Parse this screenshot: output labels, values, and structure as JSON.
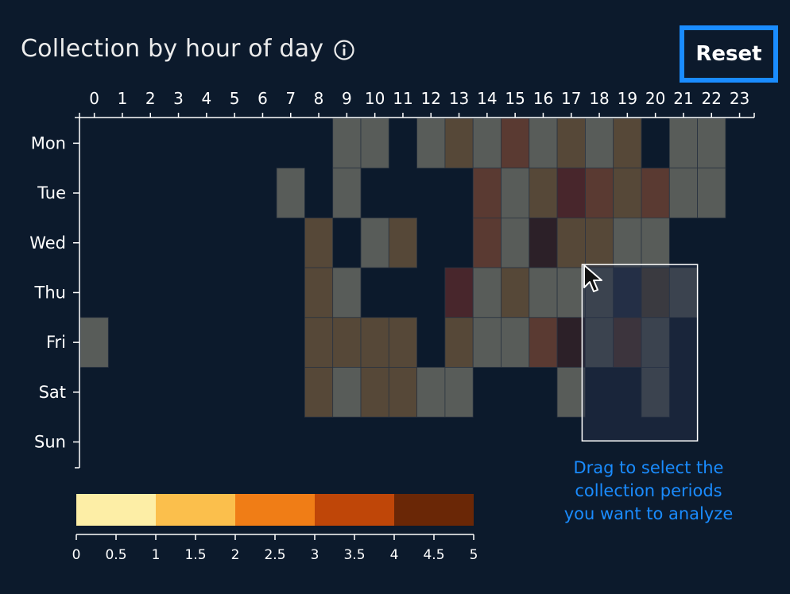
{
  "header": {
    "title": "Collection by hour of day",
    "reset_label": "Reset"
  },
  "hint": {
    "line1": "Drag to select the",
    "line2": "collection periods",
    "line3": "you want to analyze"
  },
  "colors": {
    "background": "#0c1a2c",
    "accent": "#1a8cff",
    "axis": "#ffffff"
  },
  "chart_data": {
    "type": "heatmap",
    "title": "Collection by hour of day",
    "x": [
      "0",
      "1",
      "2",
      "3",
      "4",
      "5",
      "6",
      "7",
      "8",
      "9",
      "10",
      "11",
      "12",
      "13",
      "14",
      "15",
      "16",
      "17",
      "18",
      "19",
      "20",
      "21",
      "22",
      "23"
    ],
    "y": [
      "Mon",
      "Tue",
      "Wed",
      "Thu",
      "Fri",
      "Sat",
      "Sun"
    ],
    "cells": [
      {
        "day": "Mon",
        "hour": 9,
        "value": 0.3
      },
      {
        "day": "Mon",
        "hour": 10,
        "value": 0.3
      },
      {
        "day": "Mon",
        "hour": 12,
        "value": 0.3
      },
      {
        "day": "Mon",
        "hour": 13,
        "value": 1.5
      },
      {
        "day": "Mon",
        "hour": 14,
        "value": 0.3
      },
      {
        "day": "Mon",
        "hour": 15,
        "value": 3.0
      },
      {
        "day": "Mon",
        "hour": 16,
        "value": 0.3
      },
      {
        "day": "Mon",
        "hour": 17,
        "value": 1.5
      },
      {
        "day": "Mon",
        "hour": 18,
        "value": 0.3
      },
      {
        "day": "Mon",
        "hour": 19,
        "value": 1.5
      },
      {
        "day": "Mon",
        "hour": 21,
        "value": 0.3
      },
      {
        "day": "Mon",
        "hour": 22,
        "value": 0.3
      },
      {
        "day": "Tue",
        "hour": 7,
        "value": 0.3
      },
      {
        "day": "Tue",
        "hour": 9,
        "value": 0.3
      },
      {
        "day": "Tue",
        "hour": 14,
        "value": 3.0
      },
      {
        "day": "Tue",
        "hour": 15,
        "value": 0.3
      },
      {
        "day": "Tue",
        "hour": 16,
        "value": 1.5
      },
      {
        "day": "Tue",
        "hour": 17,
        "value": 4.0
      },
      {
        "day": "Tue",
        "hour": 18,
        "value": 3.0
      },
      {
        "day": "Tue",
        "hour": 19,
        "value": 1.5
      },
      {
        "day": "Tue",
        "hour": 20,
        "value": 3.0
      },
      {
        "day": "Tue",
        "hour": 21,
        "value": 0.3
      },
      {
        "day": "Tue",
        "hour": 22,
        "value": 0.3
      },
      {
        "day": "Wed",
        "hour": 8,
        "value": 1.5
      },
      {
        "day": "Wed",
        "hour": 10,
        "value": 0.3
      },
      {
        "day": "Wed",
        "hour": 11,
        "value": 1.5
      },
      {
        "day": "Wed",
        "hour": 14,
        "value": 3.0
      },
      {
        "day": "Wed",
        "hour": 15,
        "value": 0.3
      },
      {
        "day": "Wed",
        "hour": 16,
        "value": 5.0
      },
      {
        "day": "Wed",
        "hour": 17,
        "value": 1.5
      },
      {
        "day": "Wed",
        "hour": 18,
        "value": 1.5
      },
      {
        "day": "Wed",
        "hour": 19,
        "value": 0.3
      },
      {
        "day": "Wed",
        "hour": 20,
        "value": 0.3
      },
      {
        "day": "Thu",
        "hour": 8,
        "value": 1.5
      },
      {
        "day": "Thu",
        "hour": 9,
        "value": 0.3
      },
      {
        "day": "Thu",
        "hour": 13,
        "value": 4.0
      },
      {
        "day": "Thu",
        "hour": 14,
        "value": 0.3
      },
      {
        "day": "Thu",
        "hour": 15,
        "value": 1.5
      },
      {
        "day": "Thu",
        "hour": 16,
        "value": 0.3
      },
      {
        "day": "Thu",
        "hour": 17,
        "value": 0.3
      },
      {
        "day": "Thu",
        "hour": 18,
        "value": 0.3
      },
      {
        "day": "Thu",
        "hour": 19,
        "value": 0.0
      },
      {
        "day": "Thu",
        "hour": 20,
        "value": 1.5
      },
      {
        "day": "Thu",
        "hour": 21,
        "value": 0.3
      },
      {
        "day": "Fri",
        "hour": 0,
        "value": 0.3
      },
      {
        "day": "Fri",
        "hour": 8,
        "value": 1.5
      },
      {
        "day": "Fri",
        "hour": 9,
        "value": 1.5
      },
      {
        "day": "Fri",
        "hour": 10,
        "value": 1.5
      },
      {
        "day": "Fri",
        "hour": 11,
        "value": 1.5
      },
      {
        "day": "Fri",
        "hour": 13,
        "value": 1.5
      },
      {
        "day": "Fri",
        "hour": 14,
        "value": 0.3
      },
      {
        "day": "Fri",
        "hour": 15,
        "value": 0.3
      },
      {
        "day": "Fri",
        "hour": 16,
        "value": 3.0
      },
      {
        "day": "Fri",
        "hour": 17,
        "value": 5.0
      },
      {
        "day": "Fri",
        "hour": 18,
        "value": 0.3
      },
      {
        "day": "Fri",
        "hour": 19,
        "value": 3.0
      },
      {
        "day": "Fri",
        "hour": 20,
        "value": 0.3
      },
      {
        "day": "Sat",
        "hour": 8,
        "value": 1.5
      },
      {
        "day": "Sat",
        "hour": 9,
        "value": 0.3
      },
      {
        "day": "Sat",
        "hour": 10,
        "value": 1.5
      },
      {
        "day": "Sat",
        "hour": 11,
        "value": 1.5
      },
      {
        "day": "Sat",
        "hour": 12,
        "value": 0.3
      },
      {
        "day": "Sat",
        "hour": 13,
        "value": 0.3
      },
      {
        "day": "Sat",
        "hour": 17,
        "value": 0.3
      },
      {
        "day": "Sat",
        "hour": 20,
        "value": 0.3
      }
    ],
    "legend": {
      "ticks": [
        "0",
        "0.5",
        "1",
        "1.5",
        "2",
        "2.5",
        "3",
        "3.5",
        "4",
        "4.5",
        "5"
      ],
      "bins": [
        {
          "from": 0,
          "to": 1,
          "color": "#fdeea6"
        },
        {
          "from": 1,
          "to": 2,
          "color": "#fbbf4c"
        },
        {
          "from": 2,
          "to": 3,
          "color": "#f07d16"
        },
        {
          "from": 3,
          "to": 4,
          "color": "#bf4608"
        },
        {
          "from": 4,
          "to": 5,
          "color": "#6a2706"
        }
      ]
    },
    "selection": {
      "hour_from": 17.5,
      "hour_to": 21.5,
      "day_from": "Thu",
      "day_to": "Sat"
    },
    "xlim": [
      -0.5,
      23.5
    ],
    "colorscale_range": [
      0,
      5
    ]
  }
}
